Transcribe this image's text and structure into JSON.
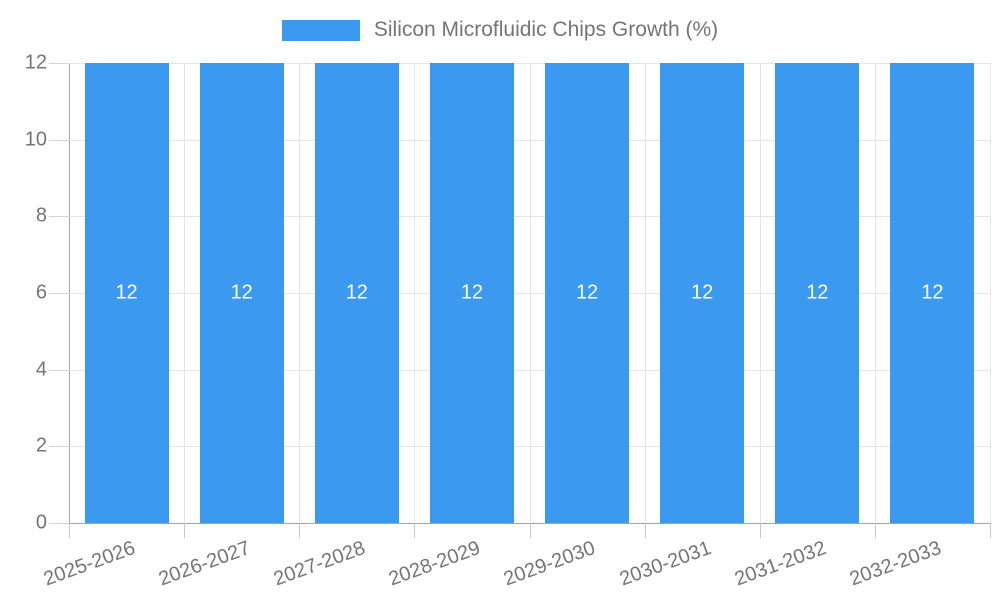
{
  "legend": {
    "items": [
      {
        "label": "Silicon Microfluidic Chips Growth (%)",
        "color": "#3b99f0"
      }
    ]
  },
  "chart_data": {
    "type": "bar",
    "title": "Silicon Microfluidic Chips Growth (%)",
    "categories": [
      "2025-2026",
      "2026-2027",
      "2027-2028",
      "2028-2029",
      "2029-2030",
      "2030-2031",
      "2031-2032",
      "2032-2033"
    ],
    "values": [
      12,
      12,
      12,
      12,
      12,
      12,
      12,
      12
    ],
    "value_labels": [
      "12",
      "12",
      "12",
      "12",
      "12",
      "12",
      "12",
      "12"
    ],
    "xlabel": "",
    "ylabel": "",
    "ylim": [
      0,
      12
    ],
    "yticks": [
      0,
      2,
      4,
      6,
      8,
      10,
      12
    ],
    "grid": true,
    "legend_position": "top",
    "x_label_rotation_deg": -20,
    "colors": {
      "bar": "#3b99f0",
      "value_label": "#ffffff",
      "axis_text": "#757575",
      "gridline": "#e6e6e6",
      "axis_line": "#a5a5a5",
      "tick": "#c8c8c8",
      "background": "#ffffff"
    }
  }
}
